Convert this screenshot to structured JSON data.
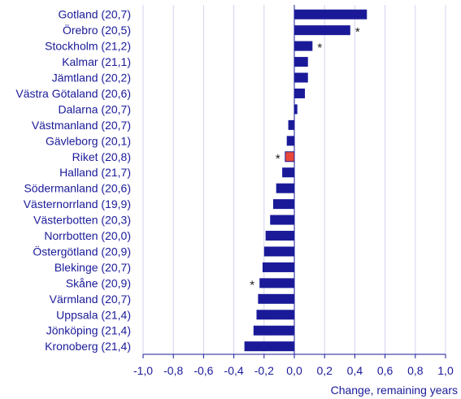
{
  "chart_data": {
    "type": "bar",
    "orientation": "horizontal",
    "title": "",
    "xlabel": "Change, remaining years",
    "ylabel": "",
    "xlim": [
      -1.0,
      1.0
    ],
    "xticks": [
      -1.0,
      -0.8,
      -0.6,
      -0.4,
      -0.2,
      0.0,
      0.2,
      0.4,
      0.6,
      0.8,
      1.0
    ],
    "xtick_labels": [
      "-1,0",
      "-0,8",
      "-0,6",
      "-0,4",
      "-0,2",
      "0,0",
      "0,2",
      "0,4",
      "0,6",
      "0,8",
      "1,0"
    ],
    "grid": "vertical",
    "legend": "none",
    "colors": {
      "bar": "#1a1a99",
      "highlight": "#e8473a",
      "grid": "#d3d3ef",
      "text": "#1a1a99"
    },
    "categories": [
      "Gotland (20,7)",
      "Örebro (20,5)",
      "Stockholm (21,2)",
      "Kalmar (21,1)",
      "Jämtland (20,2)",
      "Västra Götaland (20,6)",
      "Dalarna (20,7)",
      "Västmanland (20,7)",
      "Gävleborg (20,1)",
      "Riket (20,8)",
      "Halland (21,7)",
      "Södermanland (20,6)",
      "Västernorrland (19,9)",
      "Västerbotten (20,3)",
      "Norrbotten (20,0)",
      "Östergötland (20,9)",
      "Blekinge (20,7)",
      "Skåne (20,9)",
      "Värmland (20,7)",
      "Uppsala (21,4)",
      "Jönköping (21,4)",
      "Kronoberg (21,4)"
    ],
    "values": [
      0.48,
      0.37,
      0.12,
      0.09,
      0.09,
      0.07,
      0.02,
      -0.04,
      -0.05,
      -0.06,
      -0.08,
      -0.12,
      -0.14,
      -0.16,
      -0.19,
      -0.2,
      -0.21,
      -0.23,
      -0.24,
      -0.25,
      -0.27,
      -0.33
    ],
    "highlight_index": 9,
    "significance_marker": "*",
    "significant": [
      false,
      true,
      true,
      false,
      false,
      false,
      false,
      false,
      false,
      true,
      false,
      false,
      false,
      false,
      false,
      false,
      false,
      true,
      false,
      false,
      false,
      false
    ]
  }
}
